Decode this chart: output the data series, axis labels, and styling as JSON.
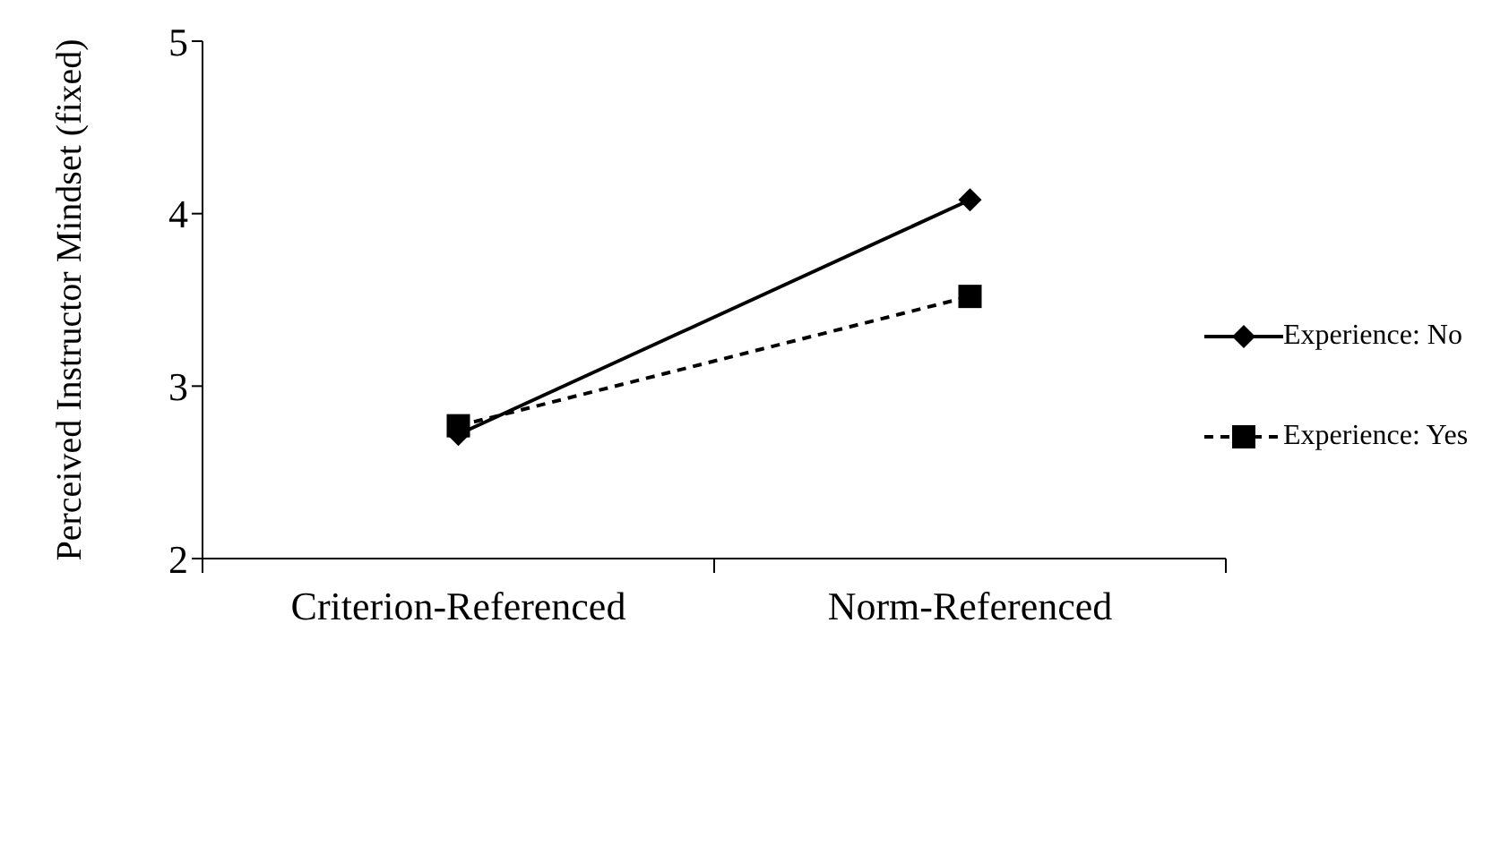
{
  "chart_data": {
    "type": "line",
    "ylabel": "Perceived Instructor Mindset (fixed)",
    "categories": [
      "Criterion-Referenced",
      "Norm-Referenced"
    ],
    "series": [
      {
        "name": "Experience: No",
        "color": "#000000",
        "values": [
          2.72,
          4.08
        ],
        "marker": "diamond",
        "line_style": "solid"
      },
      {
        "name": "Experience: Yes",
        "color": "#000000",
        "values": [
          2.77,
          3.52
        ],
        "marker": "square",
        "line_style": "dashed"
      }
    ],
    "ylim": [
      2,
      5
    ],
    "yticks": [
      2,
      3,
      4,
      5
    ],
    "grid": false,
    "legend": "right"
  }
}
